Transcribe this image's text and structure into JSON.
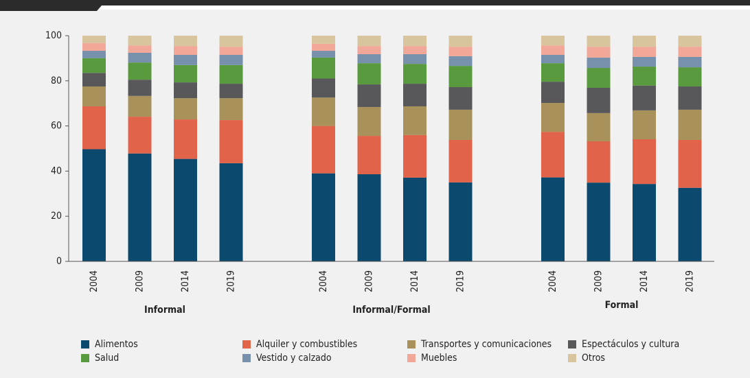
{
  "chart_data": {
    "type": "stacked_bar",
    "categories": [
      "2004",
      "2009",
      "2014",
      "2019",
      "2004",
      "2009",
      "2014",
      "2019",
      "2004",
      "2009",
      "2014",
      "2019"
    ],
    "groups": [
      "Informal",
      "Informal/Formal",
      "Formal"
    ],
    "ylim": [
      0,
      100
    ],
    "yticks": [
      0,
      20,
      40,
      60,
      80,
      100
    ],
    "series": [
      {
        "name": "Alimentos",
        "color": "#0b4a6e",
        "values": [
          49.7,
          47.8,
          45.4,
          43.5,
          39,
          38.6,
          37.1,
          35,
          37.2,
          34.9,
          34.3,
          32.6
        ]
      },
      {
        "name": "Alquiler y combustibles",
        "color": "#e0634a",
        "values": [
          19,
          16.3,
          17.5,
          19.1,
          21,
          17,
          18.9,
          18.8,
          20.2,
          18.3,
          19.8,
          21.2
        ]
      },
      {
        "name": "Transportes y comunicaciones",
        "color": "#a8915a",
        "values": [
          8.8,
          9.2,
          9.4,
          9.7,
          12.6,
          12.8,
          12.7,
          13.4,
          12.8,
          12.5,
          12.8,
          13.4
        ]
      },
      {
        "name": "Espectáculos y cultura",
        "color": "#58585b",
        "values": [
          6,
          7.2,
          7,
          6.4,
          8.4,
          10,
          10,
          10,
          9.4,
          11.2,
          11,
          10.3
        ]
      },
      {
        "name": "Salud",
        "color": "#5a9a3f",
        "values": [
          6.5,
          7.6,
          7.7,
          8.3,
          9.3,
          9.4,
          8.8,
          9.4,
          8.2,
          8.8,
          8.4,
          8.5
        ]
      },
      {
        "name": "Vestido y calzado",
        "color": "#7790ab",
        "values": [
          3.3,
          4.3,
          4.5,
          4.5,
          3,
          4,
          4.3,
          4.3,
          3.7,
          4.6,
          4.3,
          4.6
        ]
      },
      {
        "name": "Muebles",
        "color": "#f2a898",
        "values": [
          3.4,
          3.3,
          3.9,
          3.6,
          3.1,
          3.6,
          3.6,
          4.2,
          4.2,
          4.8,
          4.5,
          4.5
        ]
      },
      {
        "name": "Otros",
        "color": "#d8c59e",
        "values": [
          3.3,
          4.3,
          4.6,
          4.9,
          3.6,
          4.6,
          4.6,
          4.9,
          4.3,
          4.9,
          4.9,
          4.9
        ]
      }
    ]
  }
}
